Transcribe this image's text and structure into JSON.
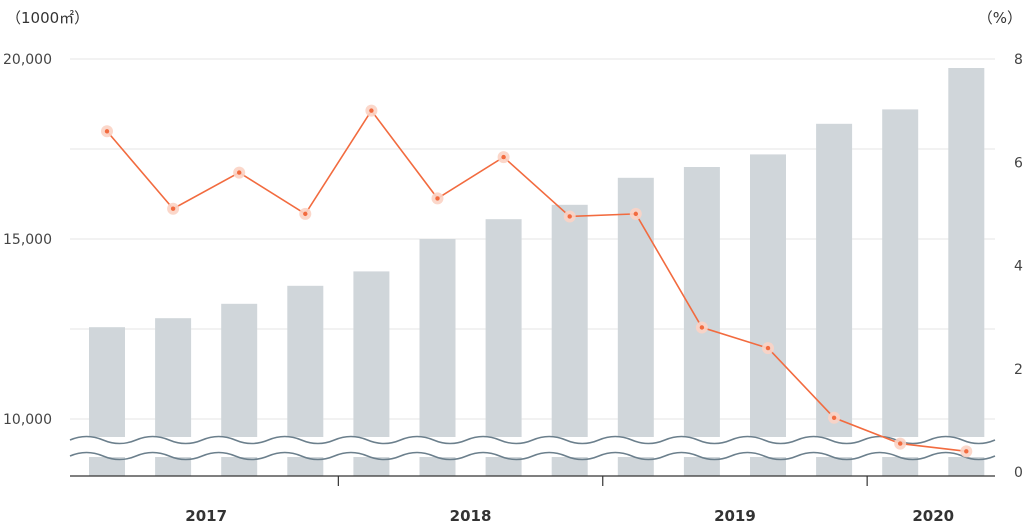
{
  "chart_data": {
    "type": "bar",
    "combo": "bar+line",
    "left_axis_unit": "（1000㎡）",
    "right_axis_unit": "（%）",
    "y_ticks": [
      "20,000",
      "15,000",
      "10,000"
    ],
    "y_tick_values": [
      20000,
      15000,
      10000
    ],
    "ylim": [
      9500,
      20000
    ],
    "y2_ticks": [
      "8",
      "6",
      "4",
      "2",
      "0"
    ],
    "y2_tick_values": [
      8,
      6,
      4,
      2,
      0
    ],
    "y2lim": [
      0,
      8
    ],
    "axis_break": true,
    "grid": true,
    "years": [
      {
        "label": "2017",
        "from": 0,
        "to": 3
      },
      {
        "label": "2018",
        "from": 4,
        "to": 7
      },
      {
        "label": "2019",
        "from": 8,
        "to": 11
      },
      {
        "label": "2020",
        "from": 12,
        "to": 13
      }
    ],
    "bar_values": [
      12550,
      12800,
      13200,
      13700,
      14100,
      15000,
      15550,
      15950,
      16700,
      17000,
      17350,
      18200,
      18600,
      19750
    ],
    "line_values": [
      6.6,
      5.1,
      5.8,
      5.0,
      7.0,
      5.3,
      6.1,
      4.95,
      5.0,
      2.8,
      2.4,
      1.05,
      0.55,
      0.4
    ],
    "colors": {
      "bar": "#d0d6da",
      "line": "#f26b3f",
      "marker_halo": "#fbd3c4",
      "axis": "#333333",
      "grid": "#e6e6e6",
      "wave": "#6b7f8c"
    }
  }
}
